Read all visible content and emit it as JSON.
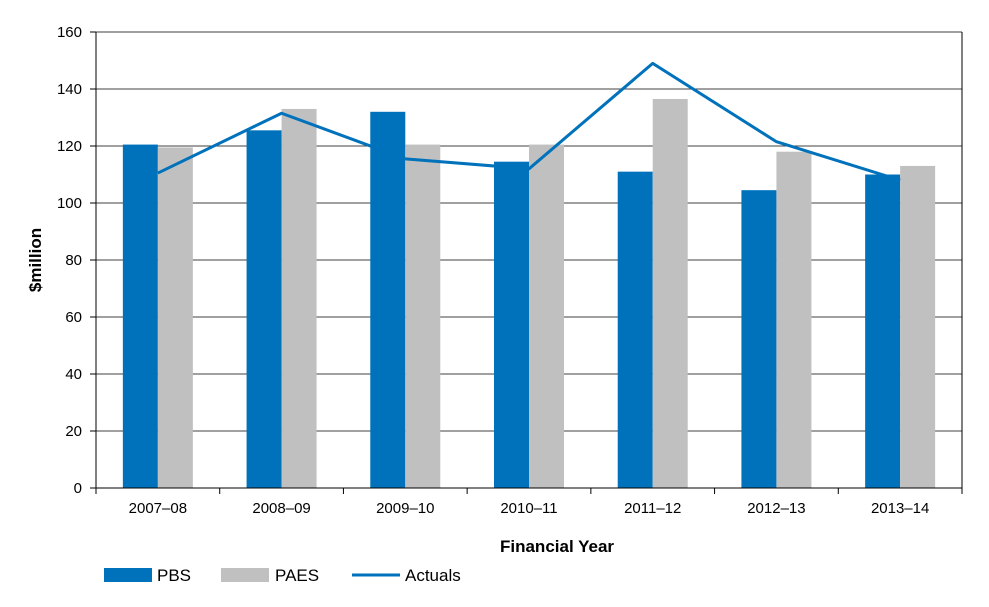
{
  "chart_data": {
    "type": "bar",
    "categories": [
      "2007–08",
      "2008–09",
      "2009–10",
      "2010–11",
      "2011–12",
      "2012–13",
      "2013–14"
    ],
    "series": [
      {
        "name": "PBS",
        "kind": "bar",
        "color": "#0072BC",
        "values": [
          120.5,
          125.5,
          132,
          114.5,
          111,
          104.5,
          110
        ]
      },
      {
        "name": "PAES",
        "kind": "bar",
        "color": "#C0C0C0",
        "values": [
          119.5,
          133,
          120.5,
          120.5,
          136.5,
          118,
          113
        ]
      },
      {
        "name": "Actuals",
        "kind": "line",
        "color": "#0072BC",
        "values": [
          110.5,
          131.5,
          115.5,
          112,
          149,
          121.5,
          108
        ]
      }
    ],
    "xlabel": "Financial Year",
    "ylabel": "$million",
    "ylim": [
      0,
      160
    ],
    "yticks": [
      0,
      20,
      40,
      60,
      80,
      100,
      120,
      140,
      160
    ],
    "grid": true,
    "legend_position": "bottom-left"
  }
}
